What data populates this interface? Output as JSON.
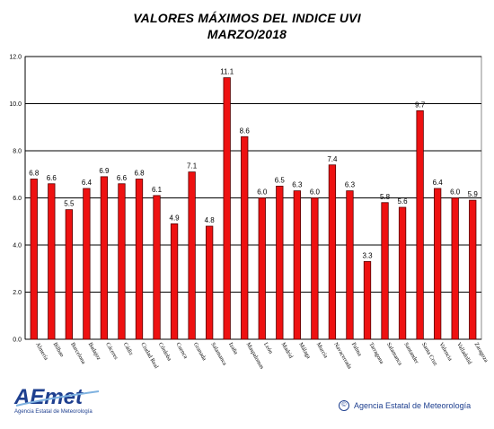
{
  "header": {
    "title": "VALORES MÁXIMOS DEL INDICE UVI",
    "subtitle": "MARZO/2018"
  },
  "footer": {
    "logo_text": "AEmet",
    "logo_subtitle": "Agencia Estatal de Meteorología",
    "copyright_symbol": "©",
    "copyright_text": "Agencia Estatal de Meteorología"
  },
  "colors": {
    "bar_fill": "#ee1111",
    "bar_stroke": "#550000",
    "grid": "#000000",
    "brand": "#1e3f8f"
  },
  "chart_data": {
    "type": "bar",
    "title": "VALORES MÁXIMOS DEL INDICE UVI",
    "subtitle": "MARZO/2018",
    "xlabel": "",
    "ylabel": "",
    "ylim": [
      0,
      12
    ],
    "yticks": [
      "0.0",
      "2.0",
      "4.0",
      "6.0",
      "8.0",
      "10.0",
      "12.0"
    ],
    "grid": true,
    "categories": [
      "Almería",
      "Bilbao",
      "Barcelona",
      "Badajoz",
      "Cáceres",
      "Cádiz",
      "Ciudad Real",
      "Córdoba",
      "Cuenca",
      "Granada",
      "Salamanca",
      "Izaña",
      "Maspalomas",
      "León",
      "Madrid",
      "Málaga",
      "Murcia",
      "Navacerrada",
      "Palma",
      "Tarragona",
      "Salamanca",
      "Santander",
      "Santa Cruz",
      "Valencia",
      "Valladolid",
      "Zaragoza"
    ],
    "values": [
      6.8,
      6.6,
      5.5,
      6.4,
      6.9,
      6.6,
      6.8,
      6.1,
      4.9,
      7.1,
      4.8,
      11.1,
      8.6,
      6.0,
      6.5,
      6.3,
      6.0,
      7.4,
      6.3,
      3.3,
      5.8,
      5.6,
      9.7,
      6.4,
      6.0,
      5.9
    ],
    "value_labels": [
      "6.8",
      "6.6",
      "5.5",
      "6.4",
      "6.9",
      "6.6",
      "6.8",
      "6.1",
      "4.9",
      "7.1",
      "4.8",
      "11.1",
      "8.6",
      "6.0",
      "6.5",
      "6.3",
      "6.0",
      "7.4",
      "6.3",
      "3.3",
      "5.8",
      "5.6",
      "9.7",
      "6.4",
      "6.0",
      "5.9"
    ]
  }
}
